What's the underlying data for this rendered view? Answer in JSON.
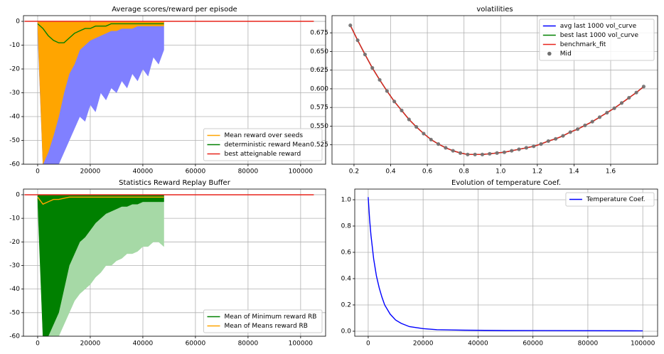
{
  "chart_data": [
    {
      "type": "line",
      "title": "Average scores/reward per episode",
      "x": [
        0,
        2000,
        4000,
        6000,
        8000,
        10000,
        12000,
        14000,
        16000,
        18000,
        20000,
        22000,
        24000,
        26000,
        28000,
        30000,
        32000,
        34000,
        36000,
        38000,
        40000,
        42000,
        44000,
        46000,
        48000
      ],
      "series": [
        {
          "color": "#8080ff",
          "area": true,
          "values": [
            -5,
            -60,
            -60,
            -60,
            -60,
            -55,
            -50,
            -45,
            -40,
            -42,
            -35,
            -38,
            -30,
            -33,
            -28,
            -30,
            -25,
            -28,
            -22,
            -25,
            -20,
            -23,
            -15,
            -18,
            -12
          ]
        },
        {
          "name": "Mean reward over seeds",
          "color": "#ffa500",
          "area": true,
          "values": [
            -2,
            -60,
            -55,
            -48,
            -40,
            -30,
            -22,
            -18,
            -12,
            -10,
            -8,
            -7,
            -6,
            -5,
            -4,
            -4,
            -3,
            -3,
            -3,
            -2,
            -2,
            -2,
            -2,
            -2,
            -2
          ]
        },
        {
          "name": "deterministic reward Mean",
          "color": "#008000",
          "values": [
            -1,
            -3,
            -6,
            -8,
            -9,
            -9,
            -7,
            -5,
            -4,
            -3,
            -3,
            -2,
            -2,
            -2,
            -1,
            -1,
            -1,
            -1,
            -1,
            -1,
            -1,
            -1,
            -1,
            -1,
            -1
          ]
        },
        {
          "name": "best atteignable reward",
          "color": "#e8251b",
          "x": [
            -5000,
            105000
          ],
          "values": [
            0,
            0
          ]
        }
      ],
      "xlim": [
        -5400,
        109500
      ],
      "ylim": [
        -60,
        2.4
      ],
      "xticks": [
        0,
        20000,
        40000,
        60000,
        80000,
        100000
      ],
      "yticks": [
        -60,
        -50,
        -40,
        -30,
        -20,
        -10,
        0
      ],
      "grid": true,
      "legend": "lower right"
    },
    {
      "type": "line",
      "title": "volatilities",
      "x": [
        0.18,
        0.22,
        0.26,
        0.3,
        0.34,
        0.38,
        0.42,
        0.46,
        0.5,
        0.54,
        0.58,
        0.62,
        0.66,
        0.7,
        0.74,
        0.78,
        0.82,
        0.86,
        0.9,
        0.94,
        0.98,
        1.02,
        1.06,
        1.1,
        1.14,
        1.18,
        1.22,
        1.26,
        1.3,
        1.34,
        1.38,
        1.42,
        1.46,
        1.5,
        1.54,
        1.58,
        1.62,
        1.66,
        1.7,
        1.74,
        1.78
      ],
      "series": [
        {
          "name": "avg last 1000 vol_curve",
          "color": "#0000ff",
          "values": [
            0.685,
            0.665,
            0.646,
            0.628,
            0.612,
            0.597,
            0.583,
            0.571,
            0.559,
            0.549,
            0.54,
            0.532,
            0.526,
            0.521,
            0.517,
            0.514,
            0.512,
            0.512,
            0.512,
            0.513,
            0.514,
            0.515,
            0.517,
            0.519,
            0.521,
            0.523,
            0.526,
            0.53,
            0.533,
            0.537,
            0.542,
            0.546,
            0.551,
            0.556,
            0.562,
            0.568,
            0.574,
            0.581,
            0.588,
            0.595,
            0.603
          ]
        },
        {
          "name": "best last 1000 vol_curve",
          "color": "#008000",
          "values": [
            0.685,
            0.665,
            0.646,
            0.628,
            0.612,
            0.597,
            0.583,
            0.571,
            0.559,
            0.549,
            0.54,
            0.532,
            0.526,
            0.521,
            0.517,
            0.514,
            0.512,
            0.512,
            0.512,
            0.513,
            0.514,
            0.515,
            0.517,
            0.519,
            0.521,
            0.523,
            0.526,
            0.53,
            0.533,
            0.537,
            0.542,
            0.546,
            0.551,
            0.556,
            0.562,
            0.568,
            0.574,
            0.581,
            0.588,
            0.595,
            0.603
          ]
        },
        {
          "name": "benchmark_fit",
          "color": "#e8251b",
          "values": [
            0.685,
            0.665,
            0.646,
            0.628,
            0.612,
            0.597,
            0.583,
            0.571,
            0.559,
            0.549,
            0.54,
            0.532,
            0.526,
            0.521,
            0.517,
            0.514,
            0.512,
            0.512,
            0.512,
            0.513,
            0.514,
            0.515,
            0.517,
            0.519,
            0.521,
            0.523,
            0.526,
            0.53,
            0.533,
            0.537,
            0.542,
            0.546,
            0.551,
            0.556,
            0.562,
            0.568,
            0.574,
            0.581,
            0.588,
            0.595,
            0.603
          ]
        },
        {
          "name": "Mid",
          "color": "#707070",
          "type": "scatter",
          "values": [
            0.685,
            0.665,
            0.646,
            0.628,
            0.612,
            0.597,
            0.583,
            0.571,
            0.559,
            0.549,
            0.54,
            0.532,
            0.526,
            0.521,
            0.517,
            0.514,
            0.512,
            0.512,
            0.512,
            0.513,
            0.514,
            0.515,
            0.517,
            0.519,
            0.521,
            0.523,
            0.526,
            0.53,
            0.533,
            0.537,
            0.542,
            0.546,
            0.551,
            0.556,
            0.562,
            0.568,
            0.574,
            0.581,
            0.588,
            0.595,
            0.603
          ]
        }
      ],
      "xlim": [
        0.08,
        1.856
      ],
      "ylim": [
        0.499,
        0.698
      ],
      "xticks": [
        0.2,
        0.4,
        0.6,
        0.8,
        {
          "value": 1,
          "label": "1.0"
        },
        1.2,
        1.4,
        1.6
      ],
      "yticks": [
        0.525,
        {
          "value": 0.55,
          "label": "0.550"
        },
        0.575,
        {
          "value": 0.6,
          "label": "0.600"
        },
        0.625,
        {
          "value": 0.65,
          "label": "0.650"
        },
        0.675
      ],
      "grid": true,
      "legend": "upper right"
    },
    {
      "type": "line",
      "title": "Statistics Reward Replay Buffer",
      "x": [
        0,
        2000,
        4000,
        6000,
        8000,
        10000,
        12000,
        14000,
        16000,
        18000,
        20000,
        22000,
        24000,
        26000,
        28000,
        30000,
        32000,
        34000,
        36000,
        38000,
        40000,
        42000,
        44000,
        46000,
        48000
      ],
      "series": [
        {
          "color": "#a6d9a6",
          "area": true,
          "values": [
            -5,
            -60,
            -60,
            -60,
            -60,
            -55,
            -50,
            -45,
            -42,
            -40,
            -38,
            -35,
            -33,
            -30,
            -30,
            -28,
            -27,
            -25,
            -25,
            -24,
            -22,
            -22,
            -20,
            -20,
            -22
          ]
        },
        {
          "name": "Mean of Minimum reward RB",
          "color": "#008000",
          "area": true,
          "values": [
            -2,
            -60,
            -60,
            -55,
            -50,
            -40,
            -30,
            -25,
            -20,
            -18,
            -15,
            -12,
            -10,
            -8,
            -7,
            -6,
            -5,
            -5,
            -4,
            -4,
            -3,
            -3,
            -3,
            -3,
            -3
          ]
        },
        {
          "name": "Mean of Means reward RB",
          "color": "#ffa500",
          "values": [
            -1,
            -4,
            -3,
            -2,
            -2,
            -1.5,
            -1,
            -1,
            -1,
            -1,
            -1,
            -1,
            -1,
            -1,
            -1,
            -1,
            -1,
            -1,
            -1,
            -1,
            -1,
            -1,
            -1,
            -1,
            -1
          ]
        },
        {
          "color": "#e8251b",
          "x": [
            -5000,
            105000
          ],
          "values": [
            0,
            0
          ]
        }
      ],
      "xlim": [
        -5400,
        109500
      ],
      "ylim": [
        -60,
        2.4
      ],
      "xticks": [
        0,
        20000,
        40000,
        60000,
        80000,
        100000
      ],
      "yticks": [
        -60,
        -50,
        -40,
        -30,
        -20,
        -10,
        0
      ],
      "grid": true,
      "legend": "lower right"
    },
    {
      "type": "line",
      "title": "Evolution of temperature Coef.",
      "x": [
        0,
        500,
        1000,
        2000,
        3000,
        4000,
        5000,
        6000,
        8000,
        10000,
        12000,
        15000,
        20000,
        25000,
        35000,
        50000,
        100000
      ],
      "series": [
        {
          "name": "Temperature Coef.",
          "color": "#0000ff",
          "values": [
            1.02,
            0.85,
            0.73,
            0.55,
            0.42,
            0.33,
            0.26,
            0.2,
            0.13,
            0.085,
            0.06,
            0.035,
            0.02,
            0.012,
            0.008,
            0.005,
            0.003
          ]
        }
      ],
      "xlim": [
        -4900,
        105400
      ],
      "ylim": [
        -0.038,
        1.081
      ],
      "xticks": [
        0,
        20000,
        40000,
        60000,
        80000,
        100000
      ],
      "yticks": [
        {
          "value": 0,
          "label": "0.0"
        },
        0.2,
        0.4,
        0.6,
        0.8,
        {
          "value": 1,
          "label": "1.0"
        }
      ],
      "grid": true,
      "legend": "upper right"
    }
  ]
}
